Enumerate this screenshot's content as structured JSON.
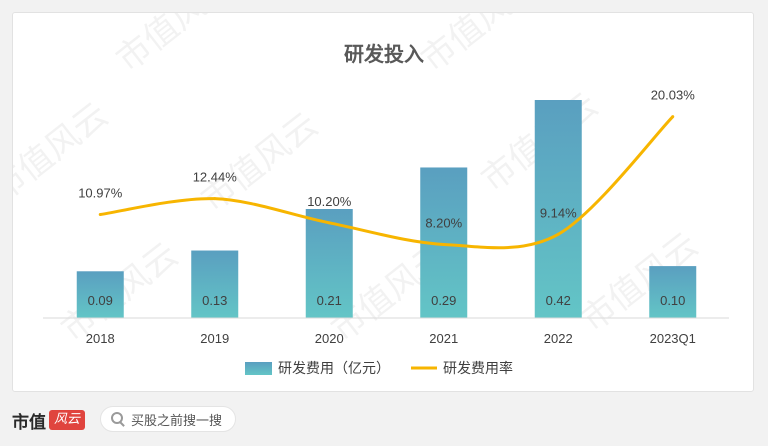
{
  "watermark": "市值风云",
  "chart_data": {
    "type": "bar+line",
    "title": "研发投入",
    "categories": [
      "2018",
      "2019",
      "2020",
      "2021",
      "2022",
      "2023Q1"
    ],
    "series": [
      {
        "name": "研发费用（亿元）",
        "type": "bar",
        "values": [
          0.09,
          0.13,
          0.21,
          0.29,
          0.42,
          0.1
        ],
        "labels": [
          "0.09",
          "0.13",
          "0.21",
          "0.29",
          "0.42",
          "0.10"
        ],
        "color": "#5ab2c2"
      },
      {
        "name": "研发费用率",
        "type": "line",
        "values": [
          10.97,
          12.44,
          10.2,
          8.2,
          9.14,
          20.03
        ],
        "labels": [
          "10.97%",
          "12.44%",
          "10.20%",
          "8.20%",
          "9.14%",
          "20.03%"
        ],
        "color": "#f7b500"
      }
    ],
    "bar_axis_range": [
      0,
      0.42
    ],
    "line_axis_range": [
      0,
      30
    ],
    "legend_position": "bottom",
    "grid": false
  },
  "footer": {
    "logo_text": "市值",
    "logo_mark": "风云",
    "search_placeholder": "买股之前搜一搜",
    "search_icon": "search-icon"
  }
}
